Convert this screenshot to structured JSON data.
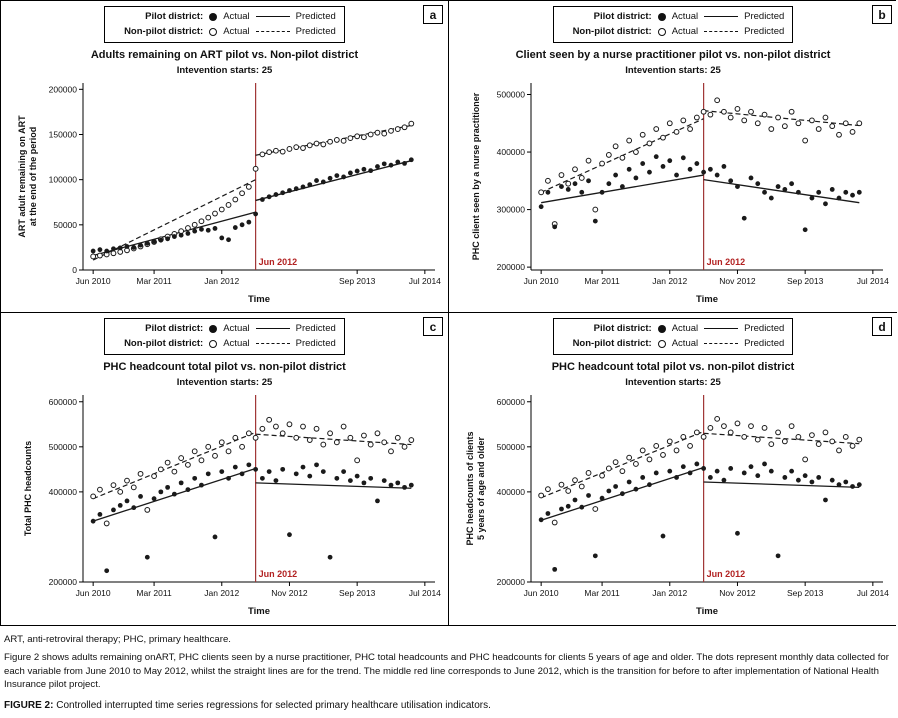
{
  "colors": {
    "point": "#1a1a1a",
    "intervention_line": "#a03535",
    "intervention_label": "#b22222"
  },
  "footer": {
    "footnote": "ART, anti-retroviral therapy; PHC, primary healthcare.",
    "description": "Figure 2 shows adults remaining onART, PHC clients seen by a nurse practitioner, PHC total headcounts and PHC headcounts for clients 5 years of age and older. The dots represent monthly data collected for each variable from June 2010 to May 2012, whilst the straight lines are for the trend. The middle red line corresponds to June 2012, which is the transition for before to after implementation of National Health Insurance pilot project.",
    "caption_label": "FIGURE 2:",
    "caption_text": "Controlled interrupted time series regressions for selected primary healthcare utilisation indicators."
  },
  "chart_data": [
    {
      "type": "scatter",
      "letter": "a",
      "title": "Adults remaining on ART pilot vs. Non-pilot district",
      "subtitle": "Intevention starts: 25",
      "xlabel": "Time",
      "ylabel": "ART adult remaining on ART\nat the end of the period",
      "ylim": [
        0,
        207000
      ],
      "xlim": [
        -1.5,
        50.5
      ],
      "yticks": [
        0,
        50000,
        100000,
        150000,
        200000
      ],
      "xticks": [
        {
          "x": 0,
          "label": "Jun 2010"
        },
        {
          "x": 9,
          "label": "Mar 2011"
        },
        {
          "x": 19,
          "label": "Jan 2012"
        },
        {
          "x": 39,
          "label": "Sep 2013"
        },
        {
          "x": 49,
          "label": "Jul 2014"
        }
      ],
      "intervention_x": 24,
      "intervention_label": "Jun 2012",
      "legend": {
        "pilot_label": "Pilot district:",
        "nonpilot_label": "Non-pilot district:",
        "actual": "Actual",
        "predicted": "Predicted"
      },
      "series": {
        "pilot_actual": [
          21000,
          22500,
          21000,
          23500,
          24500,
          26000,
          25000,
          27500,
          29500,
          31500,
          33000,
          34500,
          37000,
          38500,
          40500,
          43000,
          45000,
          44000,
          46000,
          35500,
          33500,
          47000,
          50000,
          53000,
          62000,
          78000,
          81000,
          83500,
          85500,
          88000,
          90000,
          92000,
          94500,
          99000,
          97500,
          101500,
          104500,
          103000,
          107500,
          109500,
          111500,
          110000,
          114500,
          117500,
          116000,
          119500,
          118000,
          122000
        ],
        "nonpilot_actual": [
          15000,
          16000,
          17200,
          18500,
          20000,
          21800,
          23800,
          26000,
          28500,
          31000,
          34000,
          37000,
          40000,
          43000,
          46500,
          50000,
          54000,
          58000,
          62500,
          67000,
          72000,
          78000,
          85000,
          92000,
          112000,
          128000,
          130500,
          132000,
          131000,
          134000,
          136000,
          135000,
          138000,
          140000,
          139000,
          142000,
          144000,
          143000,
          146000,
          148000,
          147000,
          150000,
          152000,
          151000,
          154000,
          156000,
          158000,
          162000
        ],
        "pilot_pred": [
          [
            [
              0,
              16000
            ],
            [
              24,
              64000
            ]
          ],
          [
            [
              24,
              77000
            ],
            [
              47,
              121000
            ]
          ]
        ],
        "nonpilot_pred": [
          [
            [
              0,
              11000
            ],
            [
              24,
              100000
            ]
          ],
          [
            [
              24,
              127000
            ],
            [
              47,
              160000
            ]
          ]
        ]
      }
    },
    {
      "type": "scatter",
      "letter": "b",
      "title": "Client seen by a nurse practitioner pilot vs. non-pilot district",
      "subtitle": "Intevention starts: 25",
      "xlabel": "Time",
      "ylabel": "PHC client seen by a nurse practitioner",
      "ylim": [
        195000,
        520000
      ],
      "xlim": [
        -1.5,
        50.5
      ],
      "yticks": [
        200000,
        300000,
        400000,
        500000
      ],
      "xticks": [
        {
          "x": 0,
          "label": "Jun 2010"
        },
        {
          "x": 9,
          "label": "Mar 2011"
        },
        {
          "x": 19,
          "label": "Jan 2012"
        },
        {
          "x": 29,
          "label": "Nov 2012"
        },
        {
          "x": 39,
          "label": "Sep 2013"
        },
        {
          "x": 49,
          "label": "Jul 2014"
        }
      ],
      "intervention_x": 24,
      "intervention_label": "Jun 2012",
      "legend": {
        "pilot_label": "Pilot district:",
        "nonpilot_label": "Non-pilot district:",
        "actual": "Actual",
        "predicted": "Predicted"
      },
      "series": {
        "pilot_actual": [
          305000,
          330000,
          270000,
          340000,
          335000,
          345000,
          330000,
          350000,
          280000,
          330000,
          345000,
          360000,
          340000,
          370000,
          355000,
          380000,
          365000,
          392000,
          375000,
          385000,
          360000,
          390000,
          370000,
          380000,
          365000,
          370000,
          360000,
          375000,
          350000,
          340000,
          285000,
          355000,
          345000,
          330000,
          320000,
          340000,
          335000,
          345000,
          330000,
          265000,
          320000,
          330000,
          310000,
          335000,
          320000,
          330000,
          325000,
          330000
        ],
        "nonpilot_actual": [
          330000,
          350000,
          275000,
          360000,
          345000,
          370000,
          355000,
          385000,
          300000,
          380000,
          395000,
          410000,
          390000,
          420000,
          400000,
          430000,
          415000,
          440000,
          425000,
          450000,
          435000,
          455000,
          440000,
          460000,
          470000,
          465000,
          490000,
          470000,
          460000,
          475000,
          455000,
          470000,
          450000,
          465000,
          440000,
          460000,
          445000,
          470000,
          450000,
          420000,
          455000,
          440000,
          460000,
          445000,
          430000,
          450000,
          435000,
          450000
        ],
        "pilot_pred": [
          [
            [
              0,
              312000
            ],
            [
              24,
              360000
            ]
          ],
          [
            [
              24,
              352000
            ],
            [
              47,
              312000
            ]
          ]
        ],
        "nonpilot_pred": [
          [
            [
              0,
              330000
            ],
            [
              24,
              458000
            ]
          ],
          [
            [
              24,
              472000
            ],
            [
              47,
              446000
            ]
          ]
        ]
      }
    },
    {
      "type": "scatter",
      "letter": "c",
      "title": "PHC headcount total pilot vs. non-pilot district",
      "subtitle": "Intevention starts: 25",
      "xlabel": "Time",
      "ylabel": "Total PHC headcounts",
      "ylim": [
        200000,
        615000
      ],
      "xlim": [
        -1.5,
        50.5
      ],
      "yticks": [
        200000,
        400000,
        500000,
        600000
      ],
      "xticks": [
        {
          "x": 0,
          "label": "Jun 2010"
        },
        {
          "x": 9,
          "label": "Mar 2011"
        },
        {
          "x": 19,
          "label": "Jan 2012"
        },
        {
          "x": 29,
          "label": "Nov 2012"
        },
        {
          "x": 39,
          "label": "Sep 2013"
        },
        {
          "x": 49,
          "label": "Jul 2014"
        }
      ],
      "intervention_x": 24,
      "intervention_label": "Jun 2012",
      "legend": {
        "pilot_label": "Pilot district:",
        "nonpilot_label": "Non-pilot district:",
        "actual": "Actual",
        "predicted": "Predicted"
      },
      "series": {
        "pilot_actual": [
          335000,
          350000,
          225000,
          360000,
          370000,
          380000,
          365000,
          390000,
          255000,
          385000,
          400000,
          410000,
          395000,
          420000,
          405000,
          430000,
          415000,
          440000,
          300000,
          445000,
          430000,
          455000,
          440000,
          460000,
          450000,
          430000,
          445000,
          425000,
          450000,
          305000,
          440000,
          455000,
          435000,
          460000,
          445000,
          255000,
          430000,
          445000,
          425000,
          435000,
          420000,
          430000,
          380000,
          425000,
          415000,
          420000,
          410000,
          415000
        ],
        "nonpilot_actual": [
          390000,
          405000,
          330000,
          415000,
          400000,
          425000,
          410000,
          440000,
          360000,
          435000,
          450000,
          465000,
          445000,
          475000,
          460000,
          490000,
          470000,
          500000,
          480000,
          510000,
          490000,
          520000,
          500000,
          530000,
          520000,
          540000,
          560000,
          545000,
          530000,
          550000,
          520000,
          545000,
          515000,
          540000,
          505000,
          530000,
          510000,
          545000,
          520000,
          470000,
          525000,
          505000,
          530000,
          510000,
          490000,
          520000,
          500000,
          515000
        ],
        "pilot_pred": [
          [
            [
              0,
              335000
            ],
            [
              24,
              452000
            ]
          ],
          [
            [
              24,
              420000
            ],
            [
              47,
              408000
            ]
          ]
        ],
        "nonpilot_pred": [
          [
            [
              0,
              385000
            ],
            [
              24,
              532000
            ]
          ],
          [
            [
              24,
              528000
            ],
            [
              47,
              505000
            ]
          ]
        ]
      }
    },
    {
      "type": "scatter",
      "letter": "d",
      "title": "PHC headcount total pilot vs. non-pilot district",
      "subtitle": "Intevention starts: 25",
      "xlabel": "Time",
      "ylabel": "PHC headcounts of clients\n5 years of age and older",
      "ylim": [
        200000,
        615000
      ],
      "xlim": [
        -1.5,
        50.5
      ],
      "yticks": [
        200000,
        400000,
        500000,
        600000
      ],
      "xticks": [
        {
          "x": 0,
          "label": "Jun 2010"
        },
        {
          "x": 9,
          "label": "Mar 2011"
        },
        {
          "x": 19,
          "label": "Jan 2012"
        },
        {
          "x": 29,
          "label": "Nov 2012"
        },
        {
          "x": 39,
          "label": "Sep 2013"
        },
        {
          "x": 49,
          "label": "Jul 2014"
        }
      ],
      "intervention_x": 24,
      "intervention_label": "Jun 2012",
      "legend": {
        "pilot_label": "Pilot district:",
        "nonpilot_label": "Non-pilot district:",
        "actual": "Actual",
        "predicted": "Predicted"
      },
      "series": {
        "pilot_actual": [
          338000,
          352000,
          228000,
          362000,
          368000,
          382000,
          366000,
          392000,
          258000,
          386000,
          402000,
          412000,
          396000,
          422000,
          406000,
          432000,
          416000,
          442000,
          302000,
          446000,
          432000,
          456000,
          442000,
          462000,
          452000,
          432000,
          446000,
          426000,
          452000,
          308000,
          442000,
          456000,
          436000,
          462000,
          446000,
          258000,
          432000,
          446000,
          426000,
          436000,
          422000,
          432000,
          382000,
          426000,
          416000,
          422000,
          412000,
          416000
        ],
        "nonpilot_actual": [
          392000,
          406000,
          332000,
          416000,
          402000,
          426000,
          412000,
          442000,
          362000,
          436000,
          452000,
          466000,
          446000,
          476000,
          462000,
          492000,
          472000,
          502000,
          482000,
          512000,
          492000,
          522000,
          502000,
          532000,
          522000,
          542000,
          562000,
          546000,
          532000,
          552000,
          522000,
          546000,
          516000,
          542000,
          506000,
          532000,
          512000,
          546000,
          522000,
          472000,
          526000,
          506000,
          532000,
          512000,
          492000,
          522000,
          502000,
          516000
        ],
        "pilot_pred": [
          [
            [
              0,
              337000
            ],
            [
              24,
              454000
            ]
          ],
          [
            [
              24,
              422000
            ],
            [
              47,
              410000
            ]
          ]
        ],
        "nonpilot_pred": [
          [
            [
              0,
              387000
            ],
            [
              24,
              534000
            ]
          ],
          [
            [
              24,
              530000
            ],
            [
              47,
              507000
            ]
          ]
        ]
      }
    }
  ]
}
